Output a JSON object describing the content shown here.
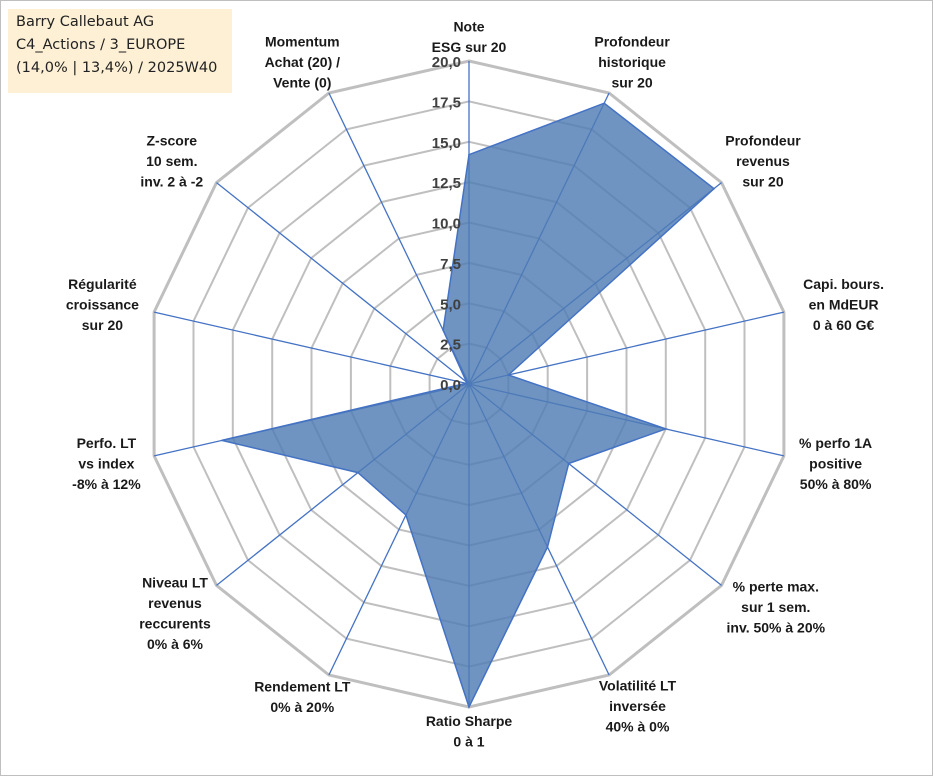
{
  "info": {
    "line1": "Barry Callebaut AG",
    "line2": "C4_Actions / 3_EUROPE",
    "line3": "(14,0% | 13,4%) / 2025W40"
  },
  "colors": {
    "fill": "#4f7cb4",
    "stroke": "#4472c4",
    "grid": "#bfbfbf",
    "spoke": "#4472c4"
  },
  "chart_data": {
    "type": "radar",
    "title": "",
    "rmin": 0,
    "rmax": 20,
    "tick_step": 2.5,
    "tick_labels": [
      "0,0",
      "2,5",
      "5,0",
      "7,5",
      "10,0",
      "12,5",
      "15,0",
      "17,5",
      "20,0"
    ],
    "axes": [
      {
        "lines": [
          "Note",
          "ESG sur 20"
        ]
      },
      {
        "lines": [
          "Profondeur",
          "historique",
          "sur 20"
        ]
      },
      {
        "lines": [
          "Profondeur",
          "revenus",
          "sur 20"
        ]
      },
      {
        "lines": [
          "Capi. bours.",
          "en MdEUR",
          "0 à 60 G€"
        ]
      },
      {
        "lines": [
          "% perfo 1A",
          "positive",
          "50% à 80%"
        ]
      },
      {
        "lines": [
          "% perte max.",
          "sur 1 sem.",
          "inv. 50% à 20%"
        ]
      },
      {
        "lines": [
          "Volatilité LT",
          "inversée",
          "40% à 0%"
        ]
      },
      {
        "lines": [
          "Ratio Sharpe",
          "0 à 1"
        ]
      },
      {
        "lines": [
          "Rendement LT",
          "0% à 20%"
        ]
      },
      {
        "lines": [
          "Niveau LT",
          "revenus",
          "reccurents",
          "0% à 6%"
        ]
      },
      {
        "lines": [
          "Perfo. LT",
          "vs index",
          "-8% à 12%"
        ]
      },
      {
        "lines": [
          "Régularité",
          "croissance",
          "sur 20"
        ]
      },
      {
        "lines": [
          "Z-score",
          "10 sem.",
          "inv. 2 à -2"
        ]
      },
      {
        "lines": [
          "Momentum",
          "Achat (20) /",
          "Vente (0)"
        ]
      }
    ],
    "series": [
      {
        "name": "Barry Callebaut AG",
        "values": [
          14.2,
          19.3,
          19.4,
          2.5,
          12.5,
          7.9,
          11.2,
          20.0,
          9.0,
          8.8,
          15.7,
          0.2,
          0.2,
          3.7
        ]
      }
    ]
  }
}
